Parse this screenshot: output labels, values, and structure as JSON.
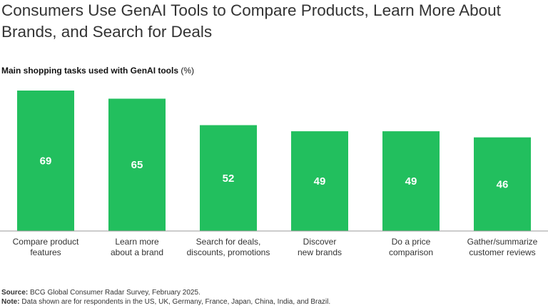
{
  "chart_data": {
    "type": "bar",
    "title": "Consumers Use GenAI Tools to Compare Products, Learn More About Brands, and Search for Deals",
    "subtitle": "Main shopping tasks used with GenAI tools",
    "unit": "(%)",
    "categories": [
      [
        "Compare product",
        "features"
      ],
      [
        "Learn more",
        "about a brand"
      ],
      [
        "Search for deals,",
        "discounts, promotions"
      ],
      [
        "Discover",
        "new brands"
      ],
      [
        "Do a price",
        "comparison"
      ],
      [
        "Gather/summarize",
        "customer reviews"
      ]
    ],
    "values": [
      69,
      65,
      52,
      49,
      49,
      46
    ],
    "ylim": [
      0,
      69
    ],
    "grid": false,
    "bar_color": "#22bf5e",
    "axis_color": "#999999"
  },
  "footer": {
    "source_label": "Source:",
    "source_text": " BCG Global Consumer Radar Survey, February 2025.",
    "note_label": "Note:",
    "note_text": " Data shown are for respondents in the US, UK, Germany, France, Japan, China, India, and Brazil."
  }
}
